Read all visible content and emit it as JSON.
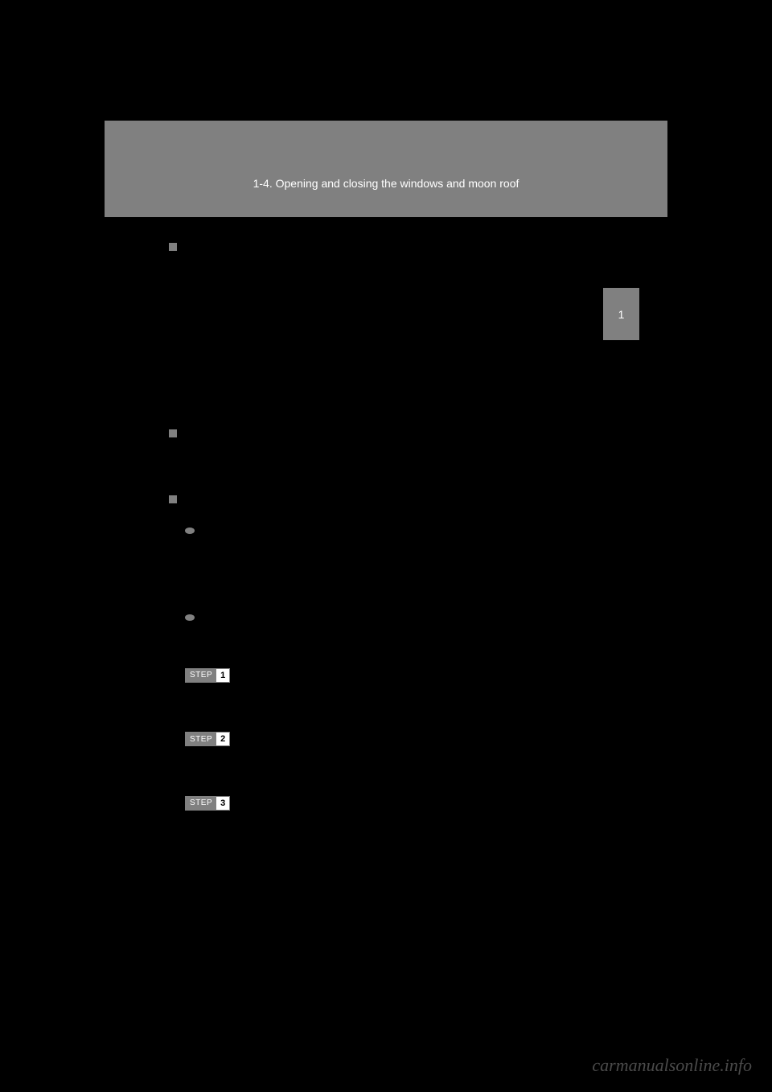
{
  "header": {
    "section_title": "1-4. Opening and closing the windows and moon roof"
  },
  "sidebar": {
    "chapter_number": "1"
  },
  "steps": {
    "step_label": "STEP",
    "numbers": [
      "1",
      "2",
      "3"
    ]
  },
  "watermark": "carmanualsonline.info",
  "colors": {
    "background": "#000000",
    "gray_box": "#808080",
    "white_text": "#ffffff",
    "watermark_color": "#4a4a4a"
  }
}
